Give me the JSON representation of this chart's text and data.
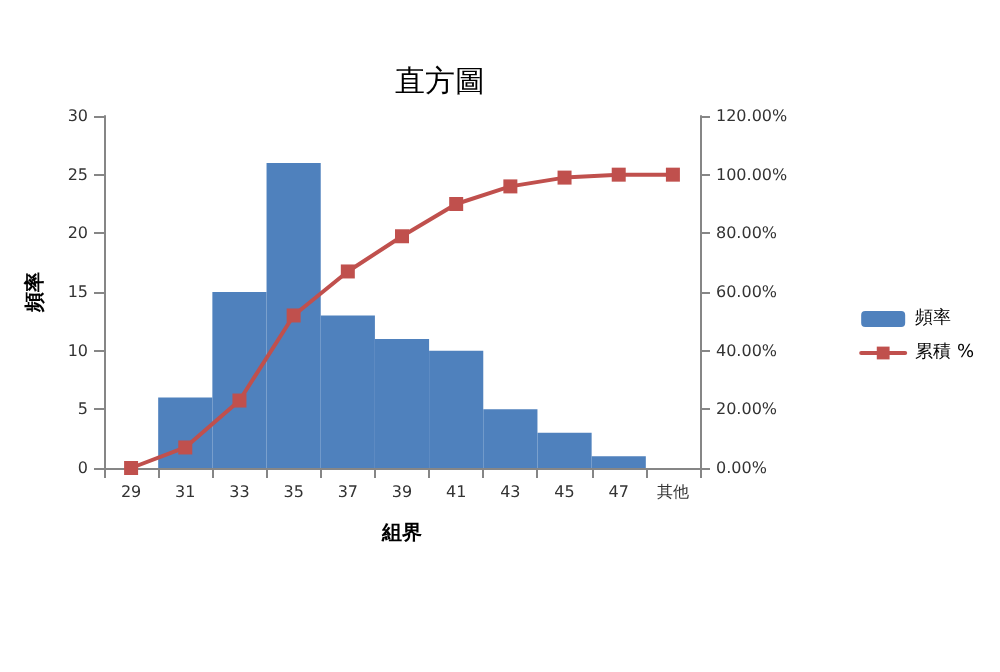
{
  "chart_data": {
    "type": "bar",
    "title": "直方圖",
    "xlabel": "組界",
    "ylabel": "頻率",
    "categories": [
      "29",
      "31",
      "33",
      "35",
      "37",
      "39",
      "41",
      "43",
      "45",
      "47",
      "其他"
    ],
    "series": [
      {
        "name": "頻率",
        "color": "#4f81bd",
        "values": [
          0,
          6,
          15,
          26,
          13,
          11,
          10,
          5,
          3,
          1,
          0
        ]
      },
      {
        "name": "累積 %",
        "type": "line",
        "axis": "y2",
        "color": "#c0504d",
        "values": [
          0,
          7,
          23,
          52,
          67,
          79,
          90,
          96,
          99,
          100,
          100
        ]
      }
    ],
    "ylim": [
      0,
      30
    ],
    "yticks": [
      0,
      5,
      10,
      15,
      20,
      25,
      30
    ],
    "y2lim": [
      0,
      120
    ],
    "y2ticks": [
      {
        "value": 0,
        "label": "0.00%"
      },
      {
        "value": 20,
        "label": "20.00%"
      },
      {
        "value": 40,
        "label": "40.00%"
      },
      {
        "value": 60,
        "label": "60.00%"
      },
      {
        "value": 80,
        "label": "80.00%"
      },
      {
        "value": 100,
        "label": "100.00%"
      },
      {
        "value": 120,
        "label": "120.00%"
      }
    ],
    "legend": "right",
    "marker": "square",
    "line_style": "solid",
    "grid": false
  }
}
